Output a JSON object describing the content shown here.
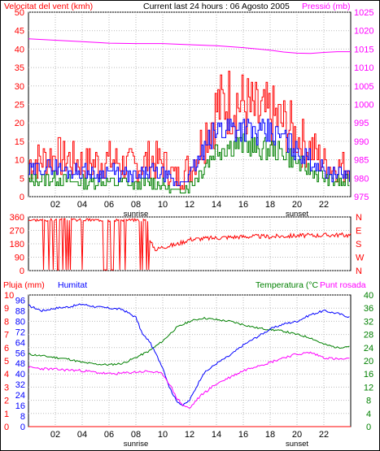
{
  "header": {
    "left_title": "Velocitat del vent (kmh)",
    "center_title": "Current last 24 hours : 06 Agosto 2005",
    "right_title": "Pressió (mb)"
  },
  "colors": {
    "red": "#ff0000",
    "blue": "#0000ff",
    "green": "#008000",
    "magenta": "#ff00ff",
    "darkred": "#c00000",
    "grid": "#bbbbbb"
  },
  "panels": {
    "bottom_labels": {
      "pluja": "Pluja (mm)",
      "humitat": "Humitat",
      "temperatura": "Temperatura (°C",
      "punt_rosada": "Punt rosada"
    }
  },
  "chart_data": [
    {
      "type": "line",
      "id": "wind_pressure",
      "y_left": {
        "label": "Velocitat del vent (kmh)",
        "ticks": [
          0,
          5,
          10,
          15,
          20,
          25,
          30,
          35,
          40,
          45,
          50
        ],
        "ylim": [
          0,
          50
        ]
      },
      "y_right": {
        "label": "Pressió (mb)",
        "ticks": [
          975,
          980,
          985,
          990,
          995,
          1000,
          1005,
          1010,
          1015,
          1020,
          1025
        ],
        "ylim": [
          975,
          1025
        ]
      },
      "x_ticks": [
        "02",
        "04",
        "06",
        "08",
        "10",
        "12",
        "14",
        "16",
        "18",
        "20",
        "22"
      ],
      "x_markers": [
        "sunrise",
        "sunset"
      ],
      "xlim": [
        0,
        24
      ],
      "series": [
        {
          "name": "Velocitat del vent (kmh)",
          "color": "red",
          "x": [
            0,
            1,
            2,
            3,
            4,
            5,
            6,
            7,
            8,
            9,
            10,
            11,
            12,
            13,
            14,
            15,
            16,
            17,
            18,
            19,
            20,
            21,
            22,
            23,
            24
          ],
          "values": [
            9,
            10,
            11,
            10,
            9,
            9,
            10,
            9,
            8,
            10,
            9,
            5,
            8,
            16,
            24,
            26,
            25,
            22,
            22,
            20,
            16,
            13,
            9,
            8,
            8
          ]
        },
        {
          "name": "gust_mean",
          "color": "blue",
          "x": [
            0,
            1,
            2,
            3,
            4,
            5,
            6,
            7,
            8,
            9,
            10,
            11,
            12,
            13,
            14,
            15,
            16,
            17,
            18,
            19,
            20,
            21,
            22,
            23,
            24
          ],
          "values": [
            7,
            8,
            8,
            7,
            7,
            6,
            7,
            6,
            5,
            7,
            6,
            3,
            6,
            12,
            18,
            19,
            19,
            17,
            17,
            16,
            12,
            10,
            7,
            6,
            6
          ]
        },
        {
          "name": "wind_min",
          "color": "green",
          "x": [
            0,
            1,
            2,
            3,
            4,
            5,
            6,
            7,
            8,
            9,
            10,
            11,
            12,
            13,
            14,
            15,
            16,
            17,
            18,
            19,
            20,
            21,
            22,
            23,
            24
          ],
          "values": [
            4,
            5,
            5,
            4,
            4,
            4,
            4,
            4,
            3,
            4,
            3,
            1,
            3,
            8,
            13,
            14,
            14,
            13,
            13,
            12,
            9,
            7,
            5,
            4,
            4
          ]
        },
        {
          "name": "Pressió (mb)",
          "color": "magenta",
          "axis": "right",
          "x": [
            0,
            2,
            4,
            6,
            8,
            10,
            12,
            14,
            16,
            18,
            19,
            20,
            21,
            22,
            23,
            24
          ],
          "values": [
            1017.8,
            1017.4,
            1017.0,
            1016.6,
            1016.5,
            1016.5,
            1016.2,
            1015.9,
            1015.4,
            1014.7,
            1014.2,
            1013.9,
            1013.8,
            1014.1,
            1014.3,
            1014.3
          ]
        }
      ]
    },
    {
      "type": "line",
      "id": "direction",
      "y_left": {
        "ticks": [
          0,
          90,
          180,
          270,
          360
        ],
        "ylim": [
          0,
          360
        ]
      },
      "y_right": {
        "ticks": [
          "N",
          "W",
          "S",
          "E",
          "N"
        ]
      },
      "xlim": [
        0,
        24
      ],
      "series": [
        {
          "name": "direction",
          "color": "darkred",
          "x": [
            0,
            0.5,
            1,
            1.5,
            2,
            2.5,
            3,
            3.5,
            4,
            4.5,
            5,
            5.5,
            6,
            6.5,
            7,
            7.5,
            8,
            8.5,
            9,
            9.5,
            10,
            11,
            12,
            13,
            14,
            15,
            16,
            17,
            18,
            19,
            20,
            21,
            22,
            23,
            24
          ],
          "values": [
            340,
            340,
            10,
            340,
            335,
            340,
            345,
            340,
            340,
            10,
            345,
            340,
            340,
            345,
            340,
            340,
            30,
            340,
            200,
            140,
            160,
            175,
            210,
            215,
            220,
            225,
            228,
            230,
            228,
            232,
            235,
            236,
            238,
            240,
            238
          ]
        }
      ]
    },
    {
      "type": "line",
      "id": "rain_hum_temp",
      "y_left_rain": {
        "label": "Pluja (mm)",
        "ticks": [
          0,
          1,
          2,
          3,
          4,
          5,
          6,
          7,
          8,
          9,
          10
        ],
        "ylim": [
          0,
          10
        ]
      },
      "y_left_hum": {
        "label": "Humitat",
        "ticks": [
          0,
          8,
          16,
          24,
          32,
          40,
          48,
          56,
          64,
          72,
          80,
          88,
          96
        ],
        "ylim": [
          0,
          100
        ]
      },
      "y_right_temp": {
        "label": "Temperatura (°C",
        "ticks": [
          0,
          4,
          8,
          12,
          16,
          20,
          24,
          28,
          32,
          36,
          40
        ],
        "ylim": [
          0,
          40
        ]
      },
      "xlim": [
        0,
        24
      ],
      "series": [
        {
          "name": "Humitat",
          "color": "blue",
          "x": [
            0,
            1,
            2,
            3,
            4,
            5,
            6,
            7,
            8,
            8.5,
            9,
            9.5,
            10,
            10.5,
            11,
            11.5,
            12,
            12.5,
            13,
            14,
            15,
            16,
            17,
            18,
            19,
            20,
            21,
            22,
            23,
            24
          ],
          "values": [
            92,
            88,
            90,
            91,
            93,
            91,
            90,
            89,
            83,
            70,
            65,
            55,
            45,
            30,
            20,
            16,
            20,
            30,
            40,
            48,
            54,
            62,
            68,
            74,
            78,
            80,
            85,
            88,
            86,
            83
          ]
        },
        {
          "name": "Temperatura (°C",
          "color": "green",
          "x": [
            0,
            1,
            2,
            3,
            4,
            5,
            6,
            7,
            8,
            9,
            10,
            11,
            12,
            13,
            14,
            15,
            16,
            17,
            18,
            19,
            20,
            21,
            22,
            23,
            24
          ],
          "values": [
            22,
            21.5,
            21,
            20.5,
            19.5,
            19,
            18.8,
            19.2,
            21,
            23,
            26,
            30,
            32,
            33,
            32.5,
            32,
            31,
            30,
            29.5,
            29,
            28,
            27,
            25,
            24,
            24.5
          ]
        },
        {
          "name": "Punt rosada",
          "color": "magenta",
          "x": [
            0,
            1,
            2,
            3,
            4,
            5,
            6,
            7,
            8,
            9,
            10,
            10.5,
            11,
            11.5,
            12,
            12.5,
            13,
            14,
            15,
            16,
            17,
            18,
            19,
            20,
            21,
            22,
            23,
            24
          ],
          "values": [
            18,
            17.6,
            17.4,
            17.2,
            17,
            16.5,
            16,
            16.2,
            16.6,
            16.8,
            16,
            13,
            9,
            6.5,
            5.5,
            8,
            10,
            13,
            15,
            17,
            18.5,
            19.5,
            21,
            22,
            22.5,
            21,
            20.5,
            20.5
          ]
        },
        {
          "name": "Pluja (mm)",
          "color": "red",
          "x": [
            0,
            24
          ],
          "values": [
            0,
            0
          ]
        }
      ]
    }
  ]
}
